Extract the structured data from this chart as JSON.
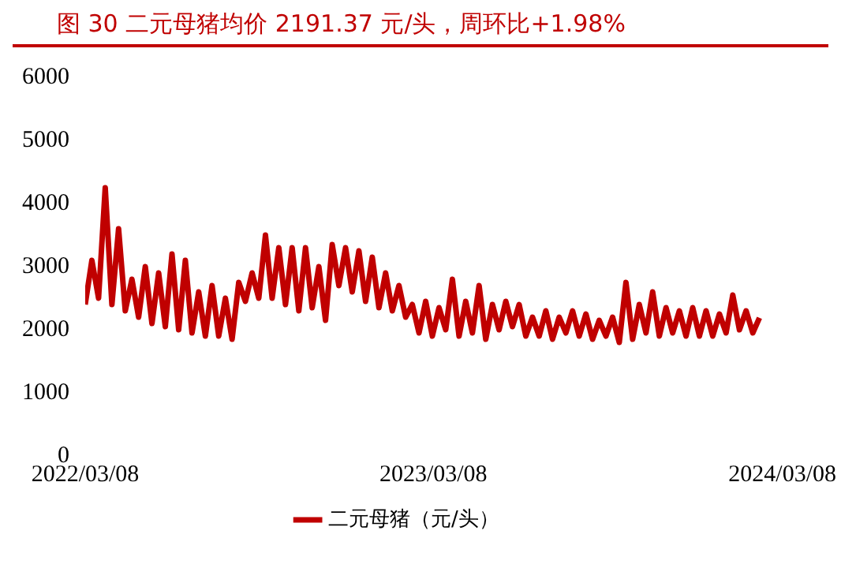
{
  "chart_data": {
    "type": "line",
    "title": "图 30 二元母猪均价 2191.37 元/头，周环比+1.98%",
    "x": [
      "2022-03-08",
      "2022-03-15",
      "2022-03-22",
      "2022-03-29",
      "2022-04-05",
      "2022-04-12",
      "2022-04-19",
      "2022-04-26",
      "2022-05-03",
      "2022-05-10",
      "2022-05-17",
      "2022-05-24",
      "2022-05-31",
      "2022-06-07",
      "2022-06-14",
      "2022-06-21",
      "2022-06-28",
      "2022-07-05",
      "2022-07-12",
      "2022-07-19",
      "2022-07-26",
      "2022-08-02",
      "2022-08-09",
      "2022-08-16",
      "2022-08-23",
      "2022-08-30",
      "2022-09-06",
      "2022-09-13",
      "2022-09-20",
      "2022-09-27",
      "2022-10-04",
      "2022-10-11",
      "2022-10-18",
      "2022-10-25",
      "2022-11-01",
      "2022-11-08",
      "2022-11-15",
      "2022-11-22",
      "2022-11-29",
      "2022-12-06",
      "2022-12-13",
      "2022-12-20",
      "2022-12-27",
      "2023-01-03",
      "2023-01-10",
      "2023-01-17",
      "2023-01-24",
      "2023-01-31",
      "2023-02-07",
      "2023-02-14",
      "2023-02-21",
      "2023-02-28",
      "2023-03-07",
      "2023-03-14",
      "2023-03-21",
      "2023-03-28",
      "2023-04-04",
      "2023-04-11",
      "2023-04-18",
      "2023-04-25",
      "2023-05-02",
      "2023-05-09",
      "2023-05-16",
      "2023-05-23",
      "2023-05-30",
      "2023-06-06",
      "2023-06-13",
      "2023-06-20",
      "2023-06-27",
      "2023-07-04",
      "2023-07-11",
      "2023-07-18",
      "2023-07-25",
      "2023-08-01",
      "2023-08-08",
      "2023-08-15",
      "2023-08-22",
      "2023-08-29",
      "2023-09-05",
      "2023-09-12",
      "2023-09-19",
      "2023-09-26",
      "2023-10-03",
      "2023-10-10",
      "2023-10-17",
      "2023-10-24",
      "2023-10-31",
      "2023-11-07",
      "2023-11-14",
      "2023-11-21",
      "2023-11-28",
      "2023-12-05",
      "2023-12-12",
      "2023-12-19",
      "2023-12-26",
      "2024-01-02",
      "2024-01-09",
      "2024-01-16",
      "2024-01-23",
      "2024-01-30",
      "2024-02-06",
      "2024-02-13"
    ],
    "series": [
      {
        "name": "二元母猪（元/头）",
        "color": "#c00000",
        "values": [
          2400,
          3100,
          2500,
          4250,
          2400,
          3600,
          2300,
          2800,
          2200,
          3000,
          2100,
          2900,
          2050,
          3200,
          2000,
          3100,
          1950,
          2600,
          1900,
          2700,
          1900,
          2500,
          1850,
          2750,
          2450,
          2900,
          2500,
          3500,
          2500,
          3300,
          2400,
          3300,
          2300,
          3300,
          2350,
          3000,
          2150,
          3350,
          2700,
          3300,
          2600,
          3250,
          2450,
          3150,
          2350,
          2900,
          2300,
          2700,
          2200,
          2400,
          1950,
          2450,
          1900,
          2350,
          2000,
          2800,
          1900,
          2450,
          1950,
          2700,
          1850,
          2400,
          2000,
          2450,
          2050,
          2400,
          1900,
          2200,
          1900,
          2300,
          1850,
          2200,
          1950,
          2300,
          1900,
          2250,
          1850,
          2150,
          1900,
          2200,
          1800,
          2750,
          1850,
          2400,
          1950,
          2600,
          1900,
          2350,
          1950,
          2300,
          1900,
          2350,
          1900,
          2300,
          1900,
          2250,
          1950,
          2550,
          2000,
          2300,
          1950,
          2190
        ]
      }
    ],
    "xlim": [
      "2022-03-08",
      "2024-03-08"
    ],
    "xticks": [
      {
        "value": "2022-03-08",
        "label": "2022/03/08"
      },
      {
        "value": "2023-03-08",
        "label": "2023/03/08"
      },
      {
        "value": "2024-03-08",
        "label": "2024/03/08"
      }
    ],
    "ylim": [
      0,
      6000
    ],
    "yticks": [
      0,
      1000,
      2000,
      3000,
      4000,
      5000,
      6000
    ],
    "grid": false,
    "legend": "bottom",
    "marker": "none",
    "line_style": "solid"
  }
}
